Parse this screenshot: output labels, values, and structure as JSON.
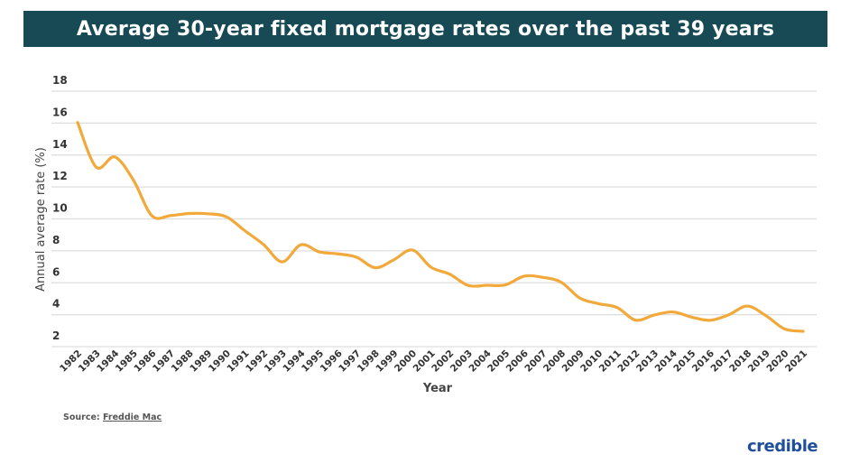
{
  "title": "Average 30-year fixed mortgage rates over the past 39 years",
  "source_label": "Source:",
  "source_link": "Freddie Mac",
  "logo": "credible",
  "colors": {
    "title_bg": "#174a55",
    "line": "#f2a93b",
    "grid": "#dddddd",
    "logo": "#1f4e9a"
  },
  "chart_data": {
    "type": "line",
    "title": "Average 30-year fixed mortgage rates over the past 39 years",
    "xlabel": "Year",
    "ylabel": "Annual average rate (%)",
    "ylim": [
      2,
      18
    ],
    "yticks": [
      2,
      4,
      6,
      8,
      10,
      12,
      14,
      16,
      18
    ],
    "grid": true,
    "x": [
      "1982",
      "1983",
      "1984",
      "1985",
      "1986",
      "1987",
      "1988",
      "1989",
      "1990",
      "1991",
      "1992",
      "1993",
      "1994",
      "1995",
      "1996",
      "1997",
      "1998",
      "1999",
      "2000",
      "2001",
      "2002",
      "2003",
      "2004",
      "2005",
      "2006",
      "2007",
      "2008",
      "2009",
      "2010",
      "2011",
      "2012",
      "2013",
      "2014",
      "2015",
      "2016",
      "2017",
      "2018",
      "2019",
      "2020",
      "2021"
    ],
    "series": [
      {
        "values": [
          16.04,
          13.24,
          13.88,
          12.43,
          10.19,
          10.21,
          10.34,
          10.32,
          10.13,
          9.25,
          8.39,
          7.31,
          8.38,
          7.93,
          7.81,
          7.6,
          6.94,
          7.44,
          8.05,
          6.97,
          6.54,
          5.83,
          5.84,
          5.87,
          6.41,
          6.34,
          6.03,
          5.04,
          4.69,
          4.45,
          3.66,
          3.98,
          4.17,
          3.85,
          3.65,
          3.99,
          4.54,
          3.94,
          3.11,
          2.96
        ]
      }
    ]
  }
}
